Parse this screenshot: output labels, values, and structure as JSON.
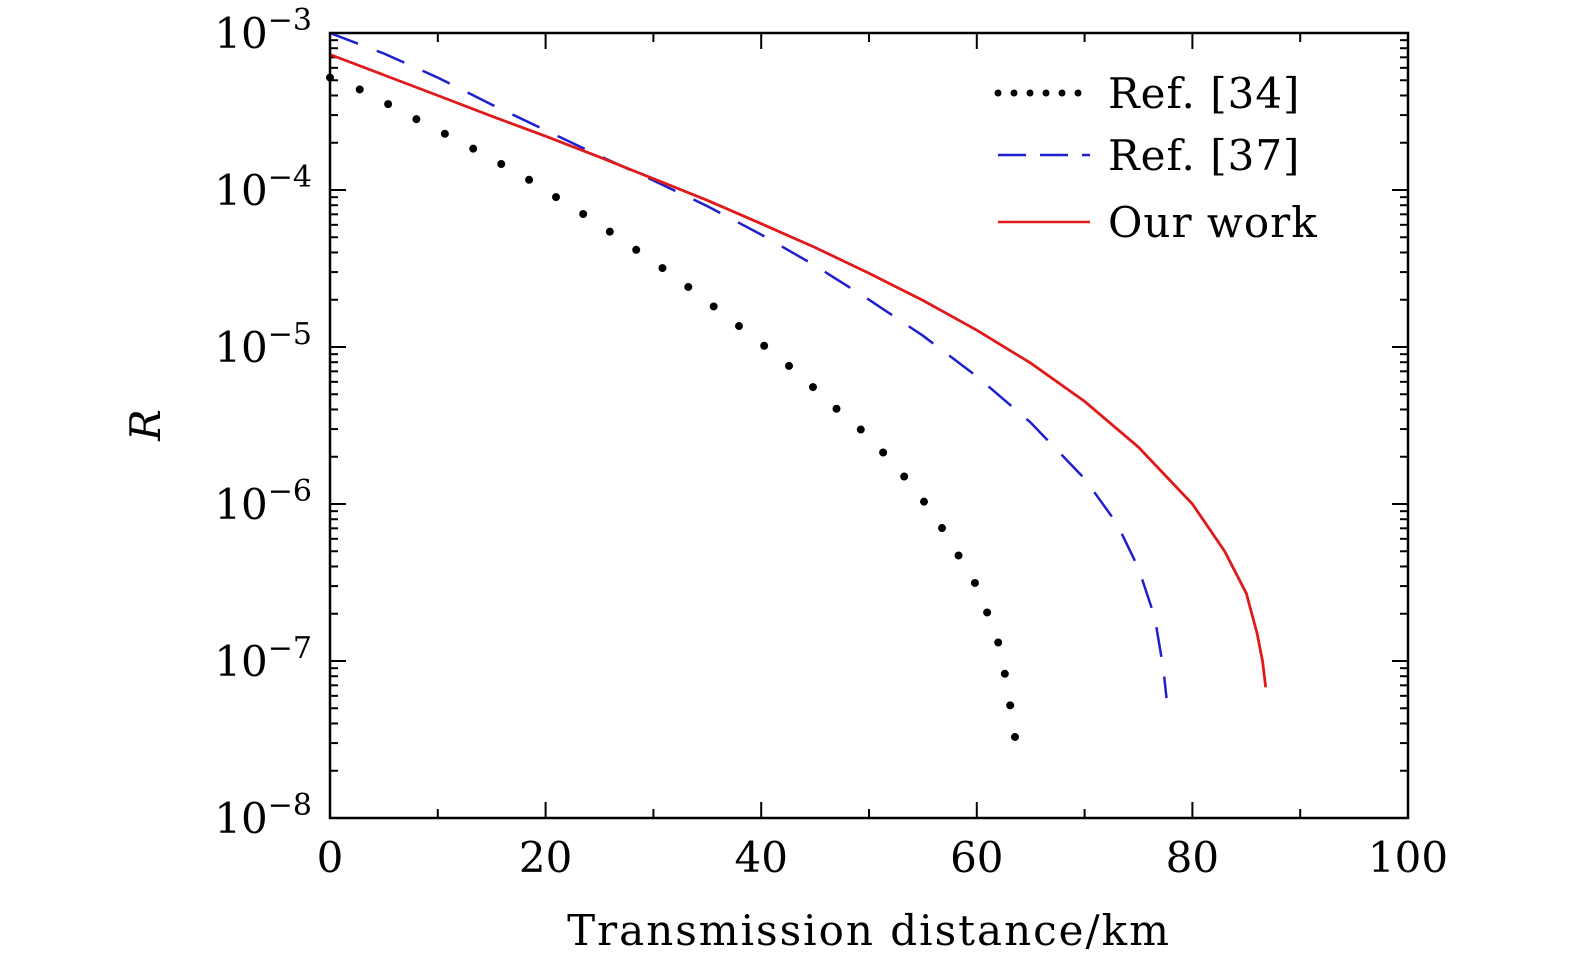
{
  "chart_data": {
    "type": "line",
    "title": "",
    "xlabel": "Transmission distance/km",
    "ylabel": "R",
    "xlim": [
      0,
      100
    ],
    "ylim": [
      1e-08,
      0.001
    ],
    "yscale": "log",
    "x_ticks": [
      0,
      20,
      40,
      60,
      80,
      100
    ],
    "x_tick_labels": [
      "0",
      "20",
      "40",
      "60",
      "80",
      "100"
    ],
    "y_ticks": [
      {
        "value": 0.001,
        "base": "10",
        "exp": "−3"
      },
      {
        "value": 0.0001,
        "base": "10",
        "exp": "−4"
      },
      {
        "value": 1e-05,
        "base": "10",
        "exp": "−5"
      },
      {
        "value": 1e-06,
        "base": "10",
        "exp": "−6"
      },
      {
        "value": 1e-07,
        "base": "10",
        "exp": "−7"
      },
      {
        "value": 1e-08,
        "base": "10",
        "exp": "−8"
      }
    ],
    "legend_position": "top-right",
    "series": [
      {
        "name": "Ref. [34]",
        "style": "dotted",
        "color": "#000000",
        "x": [
          0,
          3,
          6,
          9,
          12,
          15,
          18,
          20,
          23,
          26,
          29,
          32,
          35,
          38,
          41,
          44,
          46,
          49,
          52,
          54,
          56,
          58,
          60,
          61,
          62,
          62.6,
          63,
          63.3,
          63.6
        ],
        "y": [
          0.00052,
          0.00043,
          0.000335,
          0.00026,
          0.000205,
          0.000158,
          0.000122,
          9.9e-05,
          7.4e-05,
          5.4e-05,
          3.9e-05,
          2.8e-05,
          1.95e-05,
          1.35e-05,
          9.3e-06,
          6.3e-06,
          4.6e-06,
          3.1e-06,
          1.9e-06,
          1.3e-06,
          8.6e-07,
          5.1e-07,
          3e-07,
          2e-07,
          1.3e-07,
          8.3e-08,
          5.8e-08,
          4.2e-08,
          3.1e-08
        ]
      },
      {
        "name": "Ref. [37]",
        "style": "dashed",
        "color": "#1f1fd0",
        "x": [
          0,
          5,
          10,
          15,
          20,
          25,
          30,
          35,
          40,
          45,
          50,
          55,
          60,
          65,
          70,
          73,
          75,
          76.5,
          77.3,
          77.6
        ],
        "y": [
          0.001,
          0.00074,
          0.00052,
          0.00035,
          0.00024,
          0.000165,
          0.000115,
          7.9e-05,
          5.2e-05,
          3.3e-05,
          2e-05,
          1.18e-05,
          6.5e-06,
          3.3e-06,
          1.45e-06,
          7.5e-07,
          3.9e-07,
          1.9e-07,
          9e-08,
          5.8e-08
        ]
      },
      {
        "name": "Our work",
        "style": "solid",
        "color": "#e01a1a",
        "x": [
          0,
          5,
          10,
          15,
          20,
          25,
          30,
          35,
          40,
          45,
          50,
          55,
          60,
          65,
          70,
          75,
          80,
          83,
          85,
          86,
          86.5,
          86.8
        ],
        "y": [
          0.00073,
          0.00054,
          0.0004,
          0.000295,
          0.00022,
          0.000162,
          0.000118,
          8.6e-05,
          6.1e-05,
          4.3e-05,
          2.95e-05,
          1.98e-05,
          1.28e-05,
          7.9e-06,
          4.5e-06,
          2.3e-06,
          1e-06,
          5e-07,
          2.7e-07,
          1.5e-07,
          1e-07,
          6.8e-08
        ]
      }
    ]
  }
}
